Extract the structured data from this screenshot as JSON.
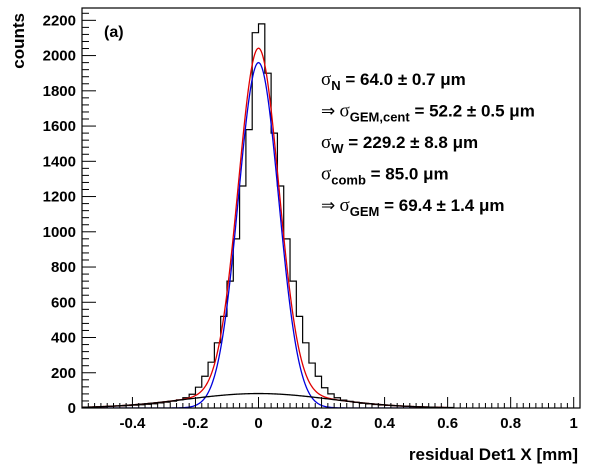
{
  "chart_data": {
    "type": "line",
    "panel_label": "(a)",
    "xlabel": "residual Det1 X [mm]",
    "ylabel": "counts",
    "xlim": [
      -0.56,
      1.02
    ],
    "ylim": [
      0,
      2270
    ],
    "x_ticks": [
      {
        "value": -0.4,
        "label": "-0.4"
      },
      {
        "value": -0.2,
        "label": "-0.2"
      },
      {
        "value": 0,
        "label": "0"
      },
      {
        "value": 0.2,
        "label": "0.2"
      },
      {
        "value": 0.4,
        "label": "0.4"
      },
      {
        "value": 0.6,
        "label": "0.6"
      },
      {
        "value": 0.8,
        "label": "0.8"
      },
      {
        "value": 1,
        "label": "1"
      }
    ],
    "y_ticks": [
      {
        "value": 0,
        "label": "0"
      },
      {
        "value": 200,
        "label": "200"
      },
      {
        "value": 400,
        "label": "400"
      },
      {
        "value": 600,
        "label": "600"
      },
      {
        "value": 800,
        "label": "800"
      },
      {
        "value": 1000,
        "label": "1000"
      },
      {
        "value": 1200,
        "label": "1200"
      },
      {
        "value": 1400,
        "label": "1400"
      },
      {
        "value": 1600,
        "label": "1600"
      },
      {
        "value": 1800,
        "label": "1800"
      },
      {
        "value": 2000,
        "label": "2000"
      },
      {
        "value": 2200,
        "label": "2200"
      }
    ],
    "histogram": {
      "bin_width": 0.02,
      "bins": [
        {
          "x": -0.56,
          "y": 5
        },
        {
          "x": -0.54,
          "y": 5
        },
        {
          "x": -0.52,
          "y": 6
        },
        {
          "x": -0.5,
          "y": 8
        },
        {
          "x": -0.48,
          "y": 9
        },
        {
          "x": -0.46,
          "y": 11
        },
        {
          "x": -0.44,
          "y": 12
        },
        {
          "x": -0.42,
          "y": 14
        },
        {
          "x": -0.4,
          "y": 16
        },
        {
          "x": -0.38,
          "y": 18
        },
        {
          "x": -0.36,
          "y": 21
        },
        {
          "x": -0.34,
          "y": 24
        },
        {
          "x": -0.32,
          "y": 29
        },
        {
          "x": -0.3,
          "y": 33
        },
        {
          "x": -0.28,
          "y": 39
        },
        {
          "x": -0.26,
          "y": 46
        },
        {
          "x": -0.24,
          "y": 58
        },
        {
          "x": -0.22,
          "y": 78
        },
        {
          "x": -0.2,
          "y": 118
        },
        {
          "x": -0.18,
          "y": 180
        },
        {
          "x": -0.16,
          "y": 260
        },
        {
          "x": -0.14,
          "y": 370
        },
        {
          "x": -0.12,
          "y": 520
        },
        {
          "x": -0.1,
          "y": 720
        },
        {
          "x": -0.08,
          "y": 960
        },
        {
          "x": -0.06,
          "y": 1260
        },
        {
          "x": -0.04,
          "y": 1580
        },
        {
          "x": -0.02,
          "y": 2130
        },
        {
          "x": 0,
          "y": 2180
        },
        {
          "x": 0.02,
          "y": 1900
        },
        {
          "x": 0.04,
          "y": 1560
        },
        {
          "x": 0.06,
          "y": 1260
        },
        {
          "x": 0.08,
          "y": 960
        },
        {
          "x": 0.1,
          "y": 720
        },
        {
          "x": 0.12,
          "y": 520
        },
        {
          "x": 0.14,
          "y": 370
        },
        {
          "x": 0.16,
          "y": 255
        },
        {
          "x": 0.18,
          "y": 180
        },
        {
          "x": 0.2,
          "y": 115
        },
        {
          "x": 0.22,
          "y": 80
        },
        {
          "x": 0.24,
          "y": 58
        },
        {
          "x": 0.26,
          "y": 45
        },
        {
          "x": 0.28,
          "y": 38
        },
        {
          "x": 0.3,
          "y": 32
        },
        {
          "x": 0.32,
          "y": 27
        },
        {
          "x": 0.34,
          "y": 23
        },
        {
          "x": 0.36,
          "y": 20
        },
        {
          "x": 0.38,
          "y": 17
        },
        {
          "x": 0.4,
          "y": 15
        },
        {
          "x": 0.42,
          "y": 13
        },
        {
          "x": 0.44,
          "y": 11
        },
        {
          "x": 0.46,
          "y": 9
        },
        {
          "x": 0.48,
          "y": 8
        },
        {
          "x": 0.5,
          "y": 7
        },
        {
          "x": 0.52,
          "y": 6
        },
        {
          "x": 0.54,
          "y": 5
        },
        {
          "x": 0.56,
          "y": 4
        },
        {
          "x": 0.58,
          "y": 3
        },
        {
          "x": 0.6,
          "y": 3
        }
      ]
    },
    "fits": [
      {
        "role": "total",
        "color": "#e00000",
        "x_range": [
          -0.56,
          0.6
        ],
        "components": [
          {
            "amplitude": 1960,
            "mean": 0.0,
            "sigma": 0.064
          },
          {
            "amplitude": 82,
            "mean": 0.0,
            "sigma": 0.229
          }
        ]
      },
      {
        "role": "narrow",
        "color": "#0000dd",
        "x_range": [
          -0.56,
          0.6
        ],
        "components": [
          {
            "amplitude": 1960,
            "mean": 0.0,
            "sigma": 0.064
          }
        ]
      },
      {
        "role": "wide",
        "color": "#000000",
        "x_range": [
          -0.56,
          0.6
        ],
        "components": [
          {
            "amplitude": 82,
            "mean": 0.0,
            "sigma": 0.229
          }
        ]
      }
    ],
    "annotations": [
      {
        "sym": "σ",
        "sub": "N",
        "text": " =  64.0 ± 0.7 μm"
      },
      {
        "prefix": "⇒ ",
        "sym": "σ",
        "sub": "GEM,cent",
        "text": " = 52.2 ± 0.5 μm"
      },
      {
        "sym": "σ",
        "sub": "W",
        "text": " =  229.2 ± 8.8 μm"
      },
      {
        "sym": "σ",
        "sub": "comb",
        "text": " = 85.0 μm"
      },
      {
        "prefix": "⇒ ",
        "sym": "σ",
        "sub": "GEM",
        "text": " = 69.4 ± 1.4 μm"
      }
    ]
  }
}
